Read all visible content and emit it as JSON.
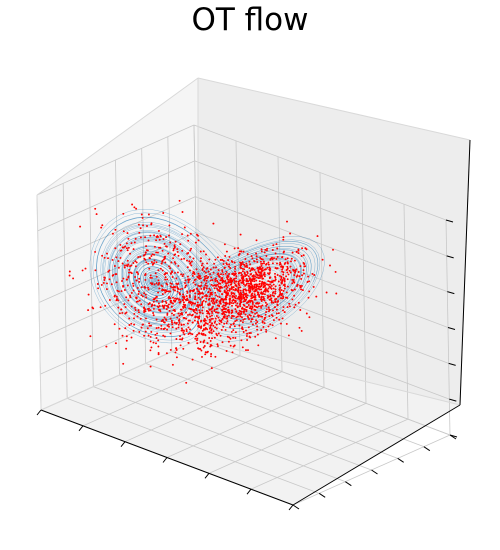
{
  "chart_data": {
    "type": "scatter",
    "projection": "3d",
    "title": "OT flow",
    "xlabel": "",
    "ylabel": "",
    "zlabel": "",
    "tick_labels_shown": false,
    "grid": true,
    "pane_color": "#f2f2f2",
    "attractor": "lorenz",
    "trajectory": {
      "color": "#1f77b4",
      "linewidth": 0.5,
      "opacity": 0.45,
      "x_range": [
        -20,
        20
      ],
      "y_range": [
        -25,
        25
      ],
      "z_range": [
        0,
        45
      ]
    },
    "samples": {
      "color": "#ff0000",
      "marker_size": 1.6,
      "count_approx": 2000,
      "x_range": [
        -20,
        20
      ],
      "y_range": [
        -25,
        25
      ],
      "z_range": [
        0,
        45
      ]
    }
  }
}
